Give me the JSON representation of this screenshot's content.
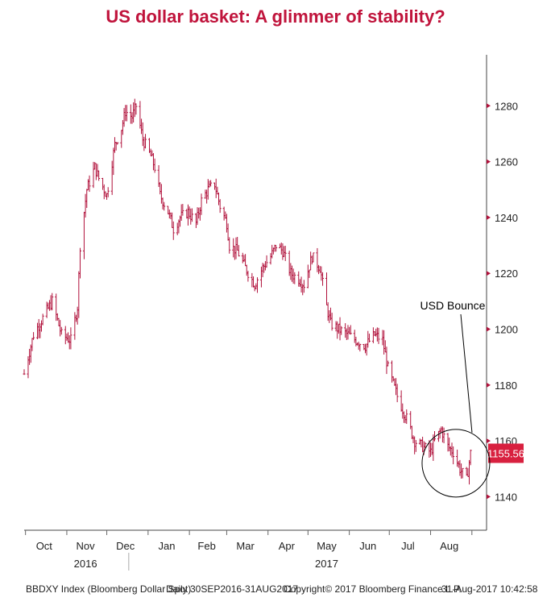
{
  "colors": {
    "title": "#c0143c",
    "series": "#b0103a",
    "last_badge": "#d8203f"
  },
  "title": "US dollar basket: A glimmer of stability?",
  "footer": {
    "index": "BBDXY Index (Bloomberg Dollar Spot)",
    "period": "Daily 30SEP2016-31AUG2017",
    "copyright": "Copyright© 2017 Bloomberg Finance L.P.",
    "timestamp": "31-Aug-2017 10:42:58"
  },
  "chart_data": {
    "type": "line",
    "title": "US dollar basket: A glimmer of stability?",
    "xlabel": "",
    "ylabel": "",
    "ylim": [
      1128,
      1300
    ],
    "y_ticks": [
      1140,
      1160,
      1180,
      1200,
      1220,
      1240,
      1260,
      1280
    ],
    "y_tick_labels": [
      "1140",
      "1160",
      "1180",
      "1200",
      "1220",
      "1240",
      "1260",
      "1280"
    ],
    "x_month_labels": [
      "Oct",
      "Nov",
      "Dec",
      "Jan",
      "Feb",
      "Mar",
      "Apr",
      "May",
      "Jun",
      "Jul",
      "Aug"
    ],
    "x_year_labels": [
      {
        "under": "Nov",
        "text": "2016"
      },
      {
        "under": "May",
        "text": "2017"
      }
    ],
    "last_value": 1155.56,
    "last_value_label": "1155.56",
    "annotation": {
      "text": "USD Bounce",
      "target_date": "2017-08-20",
      "target_value": 1152
    },
    "grid": false,
    "series": [
      {
        "x": [
          "2016-09-30",
          "2016-10-07",
          "2016-10-14",
          "2016-10-21",
          "2016-10-28",
          "2016-11-04",
          "2016-11-09",
          "2016-11-11",
          "2016-11-16",
          "2016-11-22",
          "2016-11-25",
          "2016-12-01",
          "2016-12-07",
          "2016-12-12",
          "2016-12-15",
          "2016-12-20",
          "2016-12-23",
          "2016-12-28",
          "2017-01-03",
          "2017-01-06",
          "2017-01-10",
          "2017-01-16",
          "2017-01-20",
          "2017-01-25",
          "2017-01-31",
          "2017-02-06",
          "2017-02-10",
          "2017-02-15",
          "2017-02-20",
          "2017-02-24",
          "2017-03-01",
          "2017-03-03",
          "2017-03-09",
          "2017-03-15",
          "2017-03-22",
          "2017-03-28",
          "2017-04-03",
          "2017-04-07",
          "2017-04-12",
          "2017-04-18",
          "2017-04-24",
          "2017-04-28",
          "2017-05-04",
          "2017-05-10",
          "2017-05-15",
          "2017-05-18",
          "2017-05-24",
          "2017-05-31",
          "2017-06-06",
          "2017-06-13",
          "2017-06-20",
          "2017-06-26",
          "2017-06-30",
          "2017-07-07",
          "2017-07-14",
          "2017-07-20",
          "2017-07-26",
          "2017-08-01",
          "2017-08-04",
          "2017-08-09",
          "2017-08-14",
          "2017-08-18",
          "2017-08-23",
          "2017-08-28",
          "2017-08-31"
        ],
        "values": [
          1184,
          1198,
          1204,
          1210,
          1198,
          1196,
          1208,
          1230,
          1250,
          1258,
          1254,
          1248,
          1266,
          1272,
          1278,
          1276,
          1280,
          1268,
          1262,
          1258,
          1248,
          1242,
          1236,
          1240,
          1242,
          1238,
          1246,
          1250,
          1252,
          1244,
          1238,
          1230,
          1228,
          1222,
          1216,
          1222,
          1226,
          1230,
          1228,
          1220,
          1218,
          1216,
          1226,
          1222,
          1208,
          1202,
          1200,
          1198,
          1196,
          1194,
          1198,
          1196,
          1186,
          1176,
          1168,
          1160,
          1158,
          1156,
          1160,
          1164,
          1158,
          1156,
          1150,
          1146,
          1155.56
        ]
      }
    ]
  }
}
